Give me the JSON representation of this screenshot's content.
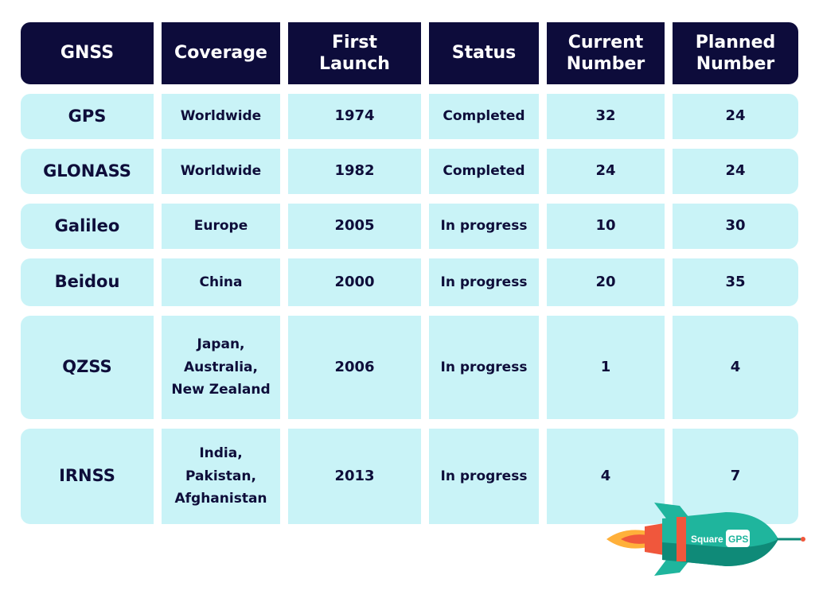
{
  "table": {
    "headers": [
      "GNSS",
      "Coverage",
      "First\nLaunch",
      "Status",
      "Current\nNumber",
      "Planned\nNumber"
    ],
    "rows": [
      [
        "GPS",
        "Worldwide",
        "1974",
        "Completed",
        "32",
        "24"
      ],
      [
        "GLONASS",
        "Worldwide",
        "1982",
        "Completed",
        "24",
        "24"
      ],
      [
        "Galileo",
        "Europe",
        "2005",
        "In progress",
        "10",
        "30"
      ],
      [
        "Beidou",
        "China",
        "2000",
        "In progress",
        "20",
        "35"
      ],
      [
        "QZSS",
        "Japan,\nAustralia,\nNew Zealand",
        "2006",
        "In progress",
        "1",
        "4"
      ],
      [
        "IRNSS",
        "India,\nPakistan,\nAfghanistan",
        "2013",
        "In progress",
        "4",
        "7"
      ]
    ]
  },
  "logo": {
    "text_left": "Square",
    "text_right": "GPS",
    "colors": {
      "teal": "#1fb59d",
      "dark_teal": "#0f8a78",
      "red": "#f0573c",
      "flame": "#ffb03a"
    }
  },
  "colors": {
    "header_bg": "#0d0c3b",
    "cell_bg": "#c9f3f7",
    "text": "#0e0d3a"
  }
}
